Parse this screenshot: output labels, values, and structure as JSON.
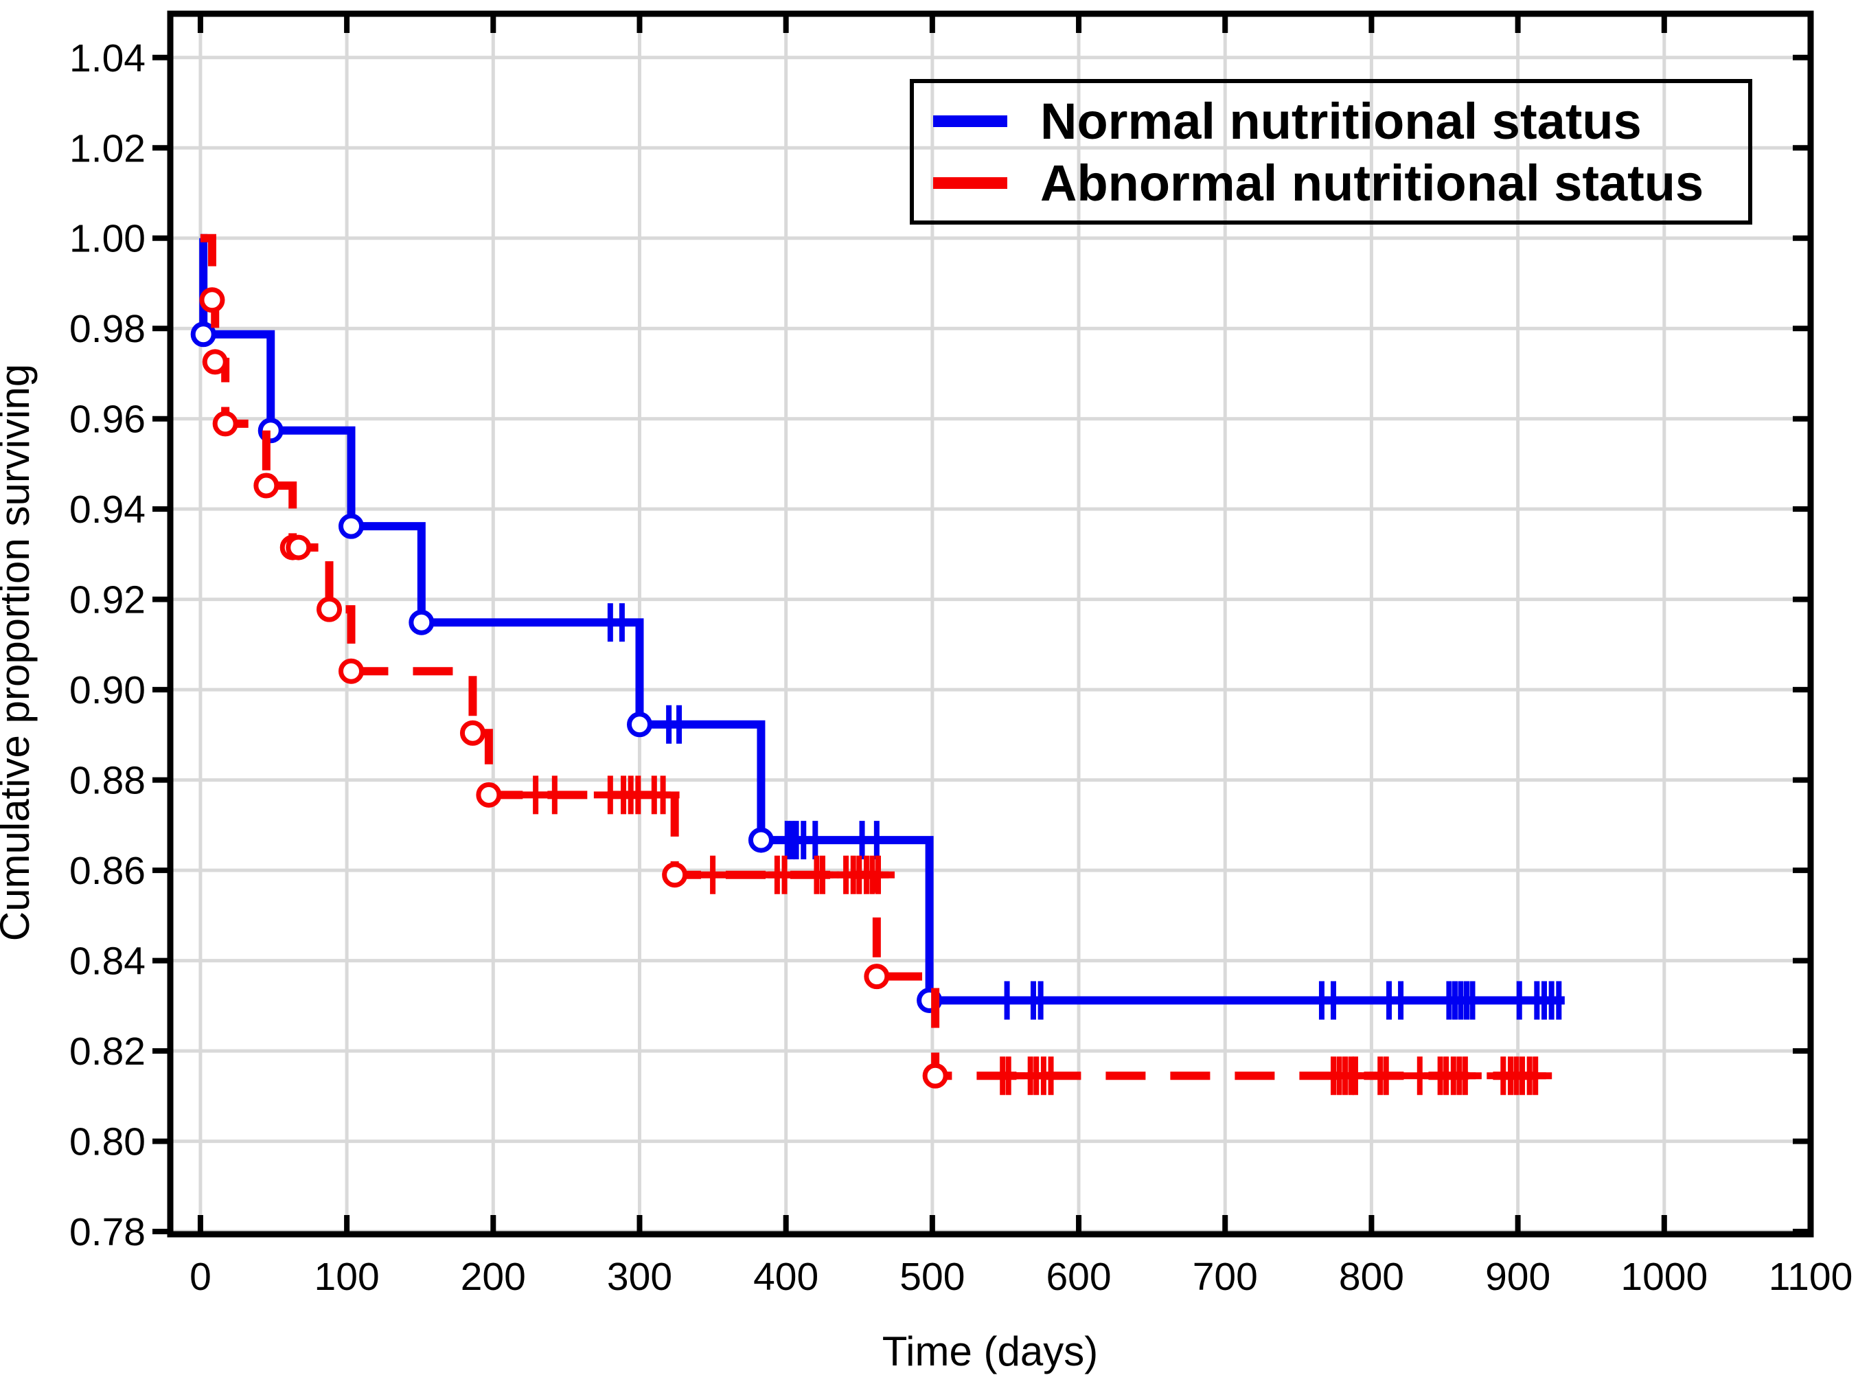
{
  "legend": {
    "position": "top-right",
    "entries": [
      {
        "label": "Normal nutritional status",
        "color": "#0000f2",
        "line_style": "solid"
      },
      {
        "label": "Abnormal nutritional status",
        "color": "#f60000",
        "line_style": "dashed"
      }
    ]
  },
  "chart_data": {
    "type": "line",
    "subtype": "kaplan-meier-step-survival",
    "title": "",
    "xlabel": "Time (days)",
    "ylabel": "Cumulative proportion surviving",
    "xlim": [
      -20.6,
      1100
    ],
    "ylim": [
      0.7794,
      1.0497
    ],
    "xticks": [
      0,
      100,
      200,
      300,
      400,
      500,
      600,
      700,
      800,
      900,
      1000,
      1100
    ],
    "yticks": [
      0.78,
      0.8,
      0.82,
      0.84,
      0.86,
      0.88,
      0.9,
      0.92,
      0.94,
      0.96,
      0.98,
      1.0,
      1.02,
      1.04
    ],
    "grid": true,
    "grid_color": "#d9d9d9",
    "axis_color": "#000000",
    "legend_position": "top-right",
    "series": [
      {
        "name": "Normal nutritional status",
        "color": "#0000f2",
        "line_style": "solid",
        "start": [
          0,
          1.0
        ],
        "events": [
          [
            2,
            0.9787
          ],
          [
            48,
            0.9574
          ],
          [
            103,
            0.9362
          ],
          [
            151,
            0.9149
          ],
          [
            300,
            0.8923
          ],
          [
            383,
            0.8667
          ],
          [
            498,
            0.8312
          ]
        ],
        "extra_markers": [],
        "censored": [
          [
            280,
            0.9149
          ],
          [
            288,
            0.9149
          ],
          [
            320,
            0.8923
          ],
          [
            327,
            0.8923
          ],
          [
            401,
            0.8667
          ],
          [
            404,
            0.8667
          ],
          [
            407,
            0.8667
          ],
          [
            412,
            0.8667
          ],
          [
            420,
            0.8667
          ],
          [
            452,
            0.8667
          ],
          [
            462,
            0.8667
          ],
          [
            551,
            0.8312
          ],
          [
            569,
            0.8312
          ],
          [
            574,
            0.8312
          ],
          [
            766,
            0.8312
          ],
          [
            774,
            0.8312
          ],
          [
            812,
            0.8312
          ],
          [
            820,
            0.8312
          ],
          [
            853,
            0.8312
          ],
          [
            857,
            0.8312
          ],
          [
            861,
            0.8312
          ],
          [
            865,
            0.8312
          ],
          [
            869,
            0.8312
          ],
          [
            901,
            0.8312
          ],
          [
            913,
            0.8312
          ],
          [
            918,
            0.8312
          ],
          [
            923,
            0.8312
          ],
          [
            928,
            0.8312
          ]
        ],
        "end_time": 932
      },
      {
        "name": "Abnormal nutritional status",
        "color": "#f60000",
        "line_style": "dashed",
        "start": [
          0,
          1.0
        ],
        "events": [
          [
            8,
            0.9863
          ],
          [
            10,
            0.9726
          ],
          [
            17,
            0.9589
          ],
          [
            45,
            0.9452
          ],
          [
            63,
            0.9315
          ],
          [
            88,
            0.9178
          ],
          [
            103,
            0.9041
          ],
          [
            186,
            0.8904
          ],
          [
            197,
            0.8767
          ],
          [
            324,
            0.859
          ],
          [
            462,
            0.8365
          ],
          [
            502,
            0.8145
          ]
        ],
        "extra_markers": [
          [
            67,
            0.9315
          ]
        ],
        "censored": [
          [
            229,
            0.8767
          ],
          [
            242,
            0.8767
          ],
          [
            280,
            0.8767
          ],
          [
            289,
            0.8767
          ],
          [
            294,
            0.8767
          ],
          [
            299,
            0.8767
          ],
          [
            310,
            0.8767
          ],
          [
            316,
            0.8767
          ],
          [
            350,
            0.859
          ],
          [
            394,
            0.859
          ],
          [
            399,
            0.859
          ],
          [
            421,
            0.859
          ],
          [
            425,
            0.859
          ],
          [
            441,
            0.859
          ],
          [
            446,
            0.859
          ],
          [
            450,
            0.859
          ],
          [
            455,
            0.859
          ],
          [
            459,
            0.859
          ],
          [
            463,
            0.859
          ],
          [
            548,
            0.8145
          ],
          [
            552,
            0.8145
          ],
          [
            567,
            0.8145
          ],
          [
            571,
            0.8145
          ],
          [
            576,
            0.8145
          ],
          [
            581,
            0.8145
          ],
          [
            774,
            0.8145
          ],
          [
            778,
            0.8145
          ],
          [
            782,
            0.8145
          ],
          [
            786,
            0.8145
          ],
          [
            789,
            0.8145
          ],
          [
            806,
            0.8145
          ],
          [
            810,
            0.8145
          ],
          [
            833,
            0.8145
          ],
          [
            847,
            0.8145
          ],
          [
            851,
            0.8145
          ],
          [
            856,
            0.8145
          ],
          [
            860,
            0.8145
          ],
          [
            864,
            0.8145
          ],
          [
            890,
            0.8145
          ],
          [
            895,
            0.8145
          ],
          [
            899,
            0.8145
          ],
          [
            903,
            0.8145
          ],
          [
            908,
            0.8145
          ],
          [
            912,
            0.8145
          ]
        ],
        "end_time": 917
      }
    ]
  }
}
